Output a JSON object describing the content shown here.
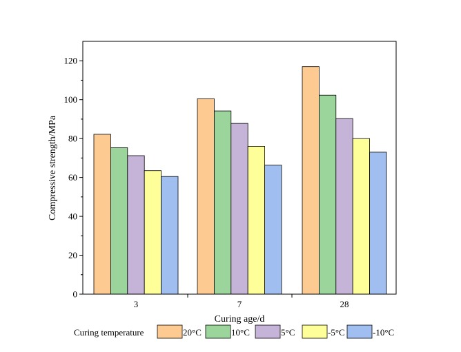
{
  "chart_data": {
    "type": "bar",
    "title": "",
    "xlabel": "Curing age/d",
    "ylabel": "Compressive strength/MPa",
    "categories": [
      "3",
      "7",
      "28"
    ],
    "ylim": [
      0,
      130
    ],
    "yticks": [
      0,
      20,
      40,
      60,
      80,
      100,
      120
    ],
    "grid": false,
    "legend_title": "Curing temperature",
    "legend_position": "bottom",
    "series": [
      {
        "name": "20°C",
        "color": "#FDCB92",
        "values": [
          82.2,
          100.5,
          117.0
        ]
      },
      {
        "name": "10°C",
        "color": "#9BD59B",
        "values": [
          75.3,
          94.2,
          102.3
        ]
      },
      {
        "name": "5°C",
        "color": "#C6B3D8",
        "values": [
          71.2,
          87.8,
          90.3
        ]
      },
      {
        "name": "-5°C",
        "color": "#FFFF99",
        "values": [
          63.5,
          76.0,
          80.0
        ]
      },
      {
        "name": "-10°C",
        "color": "#A0BFF0",
        "values": [
          60.5,
          66.3,
          73.0
        ]
      }
    ]
  }
}
